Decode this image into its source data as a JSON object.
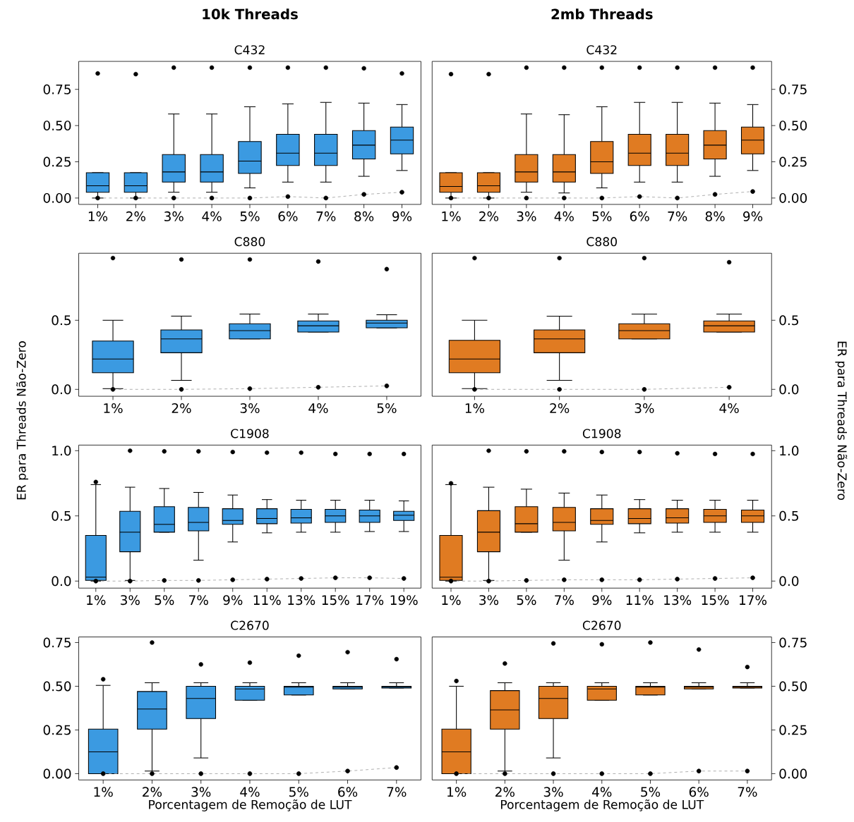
{
  "chart_data": [
    {
      "type": "box",
      "title": "10k Threads",
      "subtitle": "C432",
      "categories": [
        "1%",
        "2%",
        "3%",
        "4%",
        "5%",
        "6%",
        "7%",
        "8%",
        "9%"
      ],
      "ylim": [
        -0.044,
        0.943
      ],
      "yticks": [
        {
          "value": 0,
          "label": "0.00"
        },
        {
          "value": 0.25,
          "label": "0.25"
        },
        {
          "value": 0.5,
          "label": "0.50"
        },
        {
          "value": 0.75,
          "label": "0.75"
        }
      ],
      "series": [
        {
          "color": "#3b9ae1",
          "boxes": [
            {
              "low": 0,
              "q1": 0.04,
              "median": 0.085,
              "q3": 0.175,
              "high": 0.175,
              "outliers": [
                0.86
              ]
            },
            {
              "low": 0,
              "q1": 0.04,
              "median": 0.085,
              "q3": 0.175,
              "high": 0.175,
              "outliers": [
                0.855
              ]
            },
            {
              "low": 0.04,
              "q1": 0.11,
              "median": 0.18,
              "q3": 0.3,
              "high": 0.58,
              "outliers": [
                0.9
              ]
            },
            {
              "low": 0.04,
              "q1": 0.11,
              "median": 0.18,
              "q3": 0.3,
              "high": 0.58,
              "outliers": [
                0.9
              ]
            },
            {
              "low": 0.07,
              "q1": 0.17,
              "median": 0.255,
              "q3": 0.39,
              "high": 0.63,
              "outliers": [
                0.9
              ]
            },
            {
              "low": 0.11,
              "q1": 0.225,
              "median": 0.31,
              "q3": 0.44,
              "high": 0.65,
              "outliers": [
                0.9
              ]
            },
            {
              "low": 0.11,
              "q1": 0.225,
              "median": 0.31,
              "q3": 0.44,
              "high": 0.66,
              "outliers": [
                0.9
              ]
            },
            {
              "low": 0.15,
              "q1": 0.27,
              "median": 0.365,
              "q3": 0.465,
              "high": 0.655,
              "outliers": [
                0.895
              ]
            },
            {
              "low": 0.19,
              "q1": 0.305,
              "median": 0.4,
              "q3": 0.49,
              "high": 0.645,
              "outliers": [
                0.86
              ]
            }
          ]
        },
        {
          "type": "line",
          "color": "#999999",
          "line_style": "dashed",
          "marker": "circle",
          "values": [
            0,
            0,
            0,
            0,
            0,
            0.01,
            0,
            0.025,
            0.04
          ]
        }
      ]
    },
    {
      "type": "box",
      "title": "2mb Threads",
      "subtitle": "C432",
      "categories": [
        "1%",
        "2%",
        "3%",
        "4%",
        "5%",
        "6%",
        "7%",
        "8%",
        "9%"
      ],
      "y2lim": [
        -0.044,
        0.943
      ],
      "y2ticks": [
        {
          "value": 0,
          "label": "0.00"
        },
        {
          "value": 0.25,
          "label": "0.25"
        },
        {
          "value": 0.5,
          "label": "0.50"
        },
        {
          "value": 0.75,
          "label": "0.75"
        }
      ],
      "series": [
        {
          "axis": "y2",
          "color": "#e07b22",
          "boxes": [
            {
              "low": 0,
              "q1": 0.04,
              "median": 0.08,
              "q3": 0.175,
              "high": 0.175,
              "outliers": [
                0.855
              ]
            },
            {
              "low": 0,
              "q1": 0.04,
              "median": 0.085,
              "q3": 0.175,
              "high": 0.175,
              "outliers": [
                0.855
              ]
            },
            {
              "low": 0.04,
              "q1": 0.11,
              "median": 0.18,
              "q3": 0.3,
              "high": 0.58,
              "outliers": [
                0.9
              ]
            },
            {
              "low": 0.035,
              "q1": 0.11,
              "median": 0.18,
              "q3": 0.3,
              "high": 0.575,
              "outliers": [
                0.9
              ]
            },
            {
              "low": 0.07,
              "q1": 0.17,
              "median": 0.25,
              "q3": 0.39,
              "high": 0.63,
              "outliers": [
                0.9
              ]
            },
            {
              "low": 0.11,
              "q1": 0.225,
              "median": 0.31,
              "q3": 0.44,
              "high": 0.66,
              "outliers": [
                0.9
              ]
            },
            {
              "low": 0.11,
              "q1": 0.225,
              "median": 0.31,
              "q3": 0.44,
              "high": 0.66,
              "outliers": [
                0.9
              ]
            },
            {
              "low": 0.15,
              "q1": 0.27,
              "median": 0.365,
              "q3": 0.465,
              "high": 0.655,
              "outliers": [
                0.9
              ]
            },
            {
              "low": 0.19,
              "q1": 0.305,
              "median": 0.4,
              "q3": 0.49,
              "high": 0.645,
              "outliers": [
                0.9
              ]
            }
          ]
        },
        {
          "type": "line",
          "axis": "y2",
          "color": "#999999",
          "line_style": "dashed",
          "marker": "circle",
          "values": [
            0,
            0,
            0,
            0,
            0,
            0.01,
            0,
            0.025,
            0.045
          ]
        }
      ]
    },
    {
      "type": "box",
      "title": "C880",
      "ylabel": "ER para Threads Não-Zero",
      "categories": [
        "1%",
        "2%",
        "3%",
        "4%",
        "5%"
      ],
      "ylim": [
        -0.05,
        0.985
      ],
      "yticks": [
        {
          "value": 0,
          "label": "0.0"
        },
        {
          "value": 0.5,
          "label": "0.5"
        }
      ],
      "series": [
        {
          "color": "#3b9ae1",
          "boxes": [
            {
              "low": 0.005,
              "q1": 0.12,
              "median": 0.22,
              "q3": 0.35,
              "high": 0.5,
              "outliers": [
                0.95
              ]
            },
            {
              "low": 0.065,
              "q1": 0.265,
              "median": 0.365,
              "q3": 0.43,
              "high": 0.53,
              "outliers": [
                0.94
              ]
            },
            {
              "low": 0.365,
              "q1": 0.365,
              "median": 0.425,
              "q3": 0.475,
              "high": 0.545,
              "outliers": [
                0.94
              ]
            },
            {
              "low": 0.415,
              "q1": 0.415,
              "median": 0.46,
              "q3": 0.495,
              "high": 0.545,
              "outliers": [
                0.925
              ]
            },
            {
              "low": 0.445,
              "q1": 0.445,
              "median": 0.48,
              "q3": 0.5,
              "high": 0.54,
              "outliers": [
                0.87
              ]
            }
          ]
        },
        {
          "type": "line",
          "color": "#999999",
          "line_style": "dashed",
          "marker": "circle",
          "values": [
            0,
            0,
            0.005,
            0.015,
            0.025
          ]
        }
      ]
    },
    {
      "type": "box",
      "title": "C880",
      "y2label": "ER para Threads Não-Zero",
      "categories": [
        "1%",
        "2%",
        "3%",
        "4%"
      ],
      "y2lim": [
        -0.05,
        0.985
      ],
      "y2ticks": [
        {
          "value": 0,
          "label": "0.0"
        },
        {
          "value": 0.5,
          "label": "0.5"
        }
      ],
      "series": [
        {
          "axis": "y2",
          "color": "#e07b22",
          "boxes": [
            {
              "low": 0.005,
              "q1": 0.12,
              "median": 0.22,
              "q3": 0.355,
              "high": 0.5,
              "outliers": [
                0.95
              ]
            },
            {
              "low": 0.065,
              "q1": 0.265,
              "median": 0.365,
              "q3": 0.43,
              "high": 0.53,
              "outliers": [
                0.95
              ]
            },
            {
              "low": 0.365,
              "q1": 0.365,
              "median": 0.425,
              "q3": 0.475,
              "high": 0.545,
              "outliers": [
                0.95
              ]
            },
            {
              "low": 0.415,
              "q1": 0.415,
              "median": 0.46,
              "q3": 0.495,
              "high": 0.545,
              "outliers": [
                0.92
              ]
            }
          ]
        },
        {
          "type": "line",
          "axis": "y2",
          "color": "#999999",
          "line_style": "dashed",
          "marker": "circle",
          "values": [
            0,
            0,
            0,
            0.015
          ]
        }
      ]
    },
    {
      "type": "box",
      "title": "C1908",
      "categories": [
        "1%",
        "3%",
        "5%",
        "7%",
        "9%",
        "11%",
        "13%",
        "15%",
        "17%",
        "19%"
      ],
      "ylim": [
        -0.054,
        1.043
      ],
      "yticks": [
        {
          "value": 0,
          "label": "0.0"
        },
        {
          "value": 0.5,
          "label": "0.5"
        },
        {
          "value": 1,
          "label": "1.0"
        }
      ],
      "series": [
        {
          "color": "#3b9ae1",
          "boxes": [
            {
              "low": 0,
              "q1": 0.005,
              "median": 0.03,
              "q3": 0.35,
              "high": 0.74,
              "outliers": [
                0.76
              ]
            },
            {
              "low": 0.005,
              "q1": 0.225,
              "median": 0.375,
              "q3": 0.535,
              "high": 0.72,
              "outliers": [
                1.0
              ]
            },
            {
              "low": 0.375,
              "q1": 0.375,
              "median": 0.435,
              "q3": 0.57,
              "high": 0.71,
              "outliers": [
                0.995
              ]
            },
            {
              "low": 0.16,
              "q1": 0.385,
              "median": 0.45,
              "q3": 0.565,
              "high": 0.68,
              "outliers": [
                0.995
              ]
            },
            {
              "low": 0.3,
              "q1": 0.435,
              "median": 0.465,
              "q3": 0.555,
              "high": 0.66,
              "outliers": [
                0.99
              ]
            },
            {
              "low": 0.37,
              "q1": 0.44,
              "median": 0.48,
              "q3": 0.555,
              "high": 0.625,
              "outliers": [
                0.985
              ]
            },
            {
              "low": 0.375,
              "q1": 0.445,
              "median": 0.485,
              "q3": 0.55,
              "high": 0.62,
              "outliers": [
                0.985
              ]
            },
            {
              "low": 0.375,
              "q1": 0.45,
              "median": 0.5,
              "q3": 0.55,
              "high": 0.62,
              "outliers": [
                0.975
              ]
            },
            {
              "low": 0.38,
              "q1": 0.45,
              "median": 0.5,
              "q3": 0.545,
              "high": 0.62,
              "outliers": [
                0.975
              ]
            },
            {
              "low": 0.38,
              "q1": 0.465,
              "median": 0.505,
              "q3": 0.535,
              "high": 0.615,
              "outliers": [
                0.975
              ]
            }
          ]
        },
        {
          "type": "line",
          "color": "#999999",
          "line_style": "dashed",
          "marker": "circle",
          "values": [
            0,
            0,
            0.005,
            0.005,
            0.01,
            0.015,
            0.02,
            0.025,
            0.025,
            0.02
          ]
        }
      ]
    },
    {
      "type": "box",
      "title": "C1908",
      "categories": [
        "1%",
        "3%",
        "5%",
        "7%",
        "9%",
        "11%",
        "13%",
        "15%",
        "17%"
      ],
      "y2lim": [
        -0.054,
        1.043
      ],
      "y2ticks": [
        {
          "value": 0,
          "label": "0.0"
        },
        {
          "value": 0.5,
          "label": "0.5"
        },
        {
          "value": 1,
          "label": "1.0"
        }
      ],
      "series": [
        {
          "axis": "y2",
          "color": "#e07b22",
          "boxes": [
            {
              "low": 0,
              "q1": 0.005,
              "median": 0.03,
              "q3": 0.35,
              "high": 0.74,
              "outliers": [
                0.75
              ]
            },
            {
              "low": 0.005,
              "q1": 0.225,
              "median": 0.375,
              "q3": 0.54,
              "high": 0.72,
              "outliers": [
                1.0
              ]
            },
            {
              "low": 0.375,
              "q1": 0.375,
              "median": 0.44,
              "q3": 0.57,
              "high": 0.705,
              "outliers": [
                0.995
              ]
            },
            {
              "low": 0.16,
              "q1": 0.385,
              "median": 0.45,
              "q3": 0.565,
              "high": 0.675,
              "outliers": [
                0.995
              ]
            },
            {
              "low": 0.3,
              "q1": 0.435,
              "median": 0.465,
              "q3": 0.555,
              "high": 0.66,
              "outliers": [
                0.99
              ]
            },
            {
              "low": 0.37,
              "q1": 0.44,
              "median": 0.48,
              "q3": 0.555,
              "high": 0.625,
              "outliers": [
                0.99
              ]
            },
            {
              "low": 0.375,
              "q1": 0.445,
              "median": 0.485,
              "q3": 0.555,
              "high": 0.62,
              "outliers": [
                0.98
              ]
            },
            {
              "low": 0.375,
              "q1": 0.45,
              "median": 0.5,
              "q3": 0.55,
              "high": 0.62,
              "outliers": [
                0.975
              ]
            },
            {
              "low": 0.375,
              "q1": 0.45,
              "median": 0.5,
              "q3": 0.545,
              "high": 0.62,
              "outliers": [
                0.975
              ]
            }
          ]
        },
        {
          "type": "line",
          "axis": "y2",
          "color": "#999999",
          "line_style": "dashed",
          "marker": "circle",
          "values": [
            0,
            0,
            0.005,
            0.01,
            0.01,
            0.01,
            0.015,
            0.02,
            0.025
          ]
        }
      ]
    },
    {
      "type": "box",
      "title": "C2670",
      "xlabel": "Porcentagem de Remoção de LUT",
      "categories": [
        "1%",
        "2%",
        "3%",
        "4%",
        "5%",
        "6%",
        "7%"
      ],
      "ylim": [
        -0.036,
        0.782
      ],
      "yticks": [
        {
          "value": 0,
          "label": "0.00"
        },
        {
          "value": 0.25,
          "label": "0.25"
        },
        {
          "value": 0.5,
          "label": "0.50"
        },
        {
          "value": 0.75,
          "label": "0.75"
        }
      ],
      "series": [
        {
          "color": "#3b9ae1",
          "boxes": [
            {
              "low": 0,
              "q1": 0,
              "median": 0.125,
              "q3": 0.255,
              "high": 0.505,
              "outliers": [
                0.54
              ]
            },
            {
              "low": 0.015,
              "q1": 0.255,
              "median": 0.37,
              "q3": 0.47,
              "high": 0.52,
              "outliers": [
                0.75
              ]
            },
            {
              "low": 0.09,
              "q1": 0.315,
              "median": 0.43,
              "q3": 0.5,
              "high": 0.52,
              "outliers": [
                0.625
              ]
            },
            {
              "low": 0.42,
              "q1": 0.42,
              "median": 0.485,
              "q3": 0.5,
              "high": 0.52,
              "outliers": [
                0.635
              ]
            },
            {
              "low": 0.45,
              "q1": 0.45,
              "median": 0.495,
              "q3": 0.5,
              "high": 0.52,
              "outliers": [
                0.675
              ]
            },
            {
              "low": 0.485,
              "q1": 0.485,
              "median": 0.495,
              "q3": 0.5,
              "high": 0.52,
              "outliers": [
                0.695
              ]
            },
            {
              "low": 0.49,
              "q1": 0.49,
              "median": 0.495,
              "q3": 0.5,
              "high": 0.52,
              "outliers": [
                0.655
              ]
            }
          ]
        },
        {
          "type": "line",
          "color": "#999999",
          "line_style": "dashed",
          "marker": "circle",
          "values": [
            0,
            0,
            0,
            0,
            0,
            0.015,
            0.035
          ]
        }
      ]
    },
    {
      "type": "box",
      "title": "C2670",
      "xlabel": "Porcentagem de Remoção de LUT",
      "categories": [
        "1%",
        "2%",
        "3%",
        "4%",
        "5%",
        "6%",
        "7%"
      ],
      "y2lim": [
        -0.036,
        0.782
      ],
      "y2ticks": [
        {
          "value": 0,
          "label": "0.00"
        },
        {
          "value": 0.25,
          "label": "0.25"
        },
        {
          "value": 0.5,
          "label": "0.50"
        },
        {
          "value": 0.75,
          "label": "0.75"
        }
      ],
      "series": [
        {
          "axis": "y2",
          "color": "#e07b22",
          "boxes": [
            {
              "low": 0,
              "q1": 0,
              "median": 0.125,
              "q3": 0.255,
              "high": 0.5,
              "outliers": [
                0.53
              ]
            },
            {
              "low": 0.015,
              "q1": 0.255,
              "median": 0.365,
              "q3": 0.475,
              "high": 0.52,
              "outliers": [
                0.63
              ]
            },
            {
              "low": 0.09,
              "q1": 0.315,
              "median": 0.43,
              "q3": 0.5,
              "high": 0.52,
              "outliers": [
                0.745
              ]
            },
            {
              "low": 0.42,
              "q1": 0.42,
              "median": 0.485,
              "q3": 0.5,
              "high": 0.52,
              "outliers": [
                0.74
              ]
            },
            {
              "low": 0.45,
              "q1": 0.45,
              "median": 0.495,
              "q3": 0.5,
              "high": 0.52,
              "outliers": [
                0.75
              ]
            },
            {
              "low": 0.485,
              "q1": 0.485,
              "median": 0.495,
              "q3": 0.5,
              "high": 0.52,
              "outliers": [
                0.71
              ]
            },
            {
              "low": 0.49,
              "q1": 0.49,
              "median": 0.495,
              "q3": 0.5,
              "high": 0.52,
              "outliers": [
                0.61
              ]
            }
          ]
        },
        {
          "type": "line",
          "axis": "y2",
          "color": "#999999",
          "line_style": "dashed",
          "marker": "circle",
          "values": [
            0,
            0,
            0,
            0,
            0,
            0.015,
            0.015
          ]
        }
      ]
    }
  ]
}
